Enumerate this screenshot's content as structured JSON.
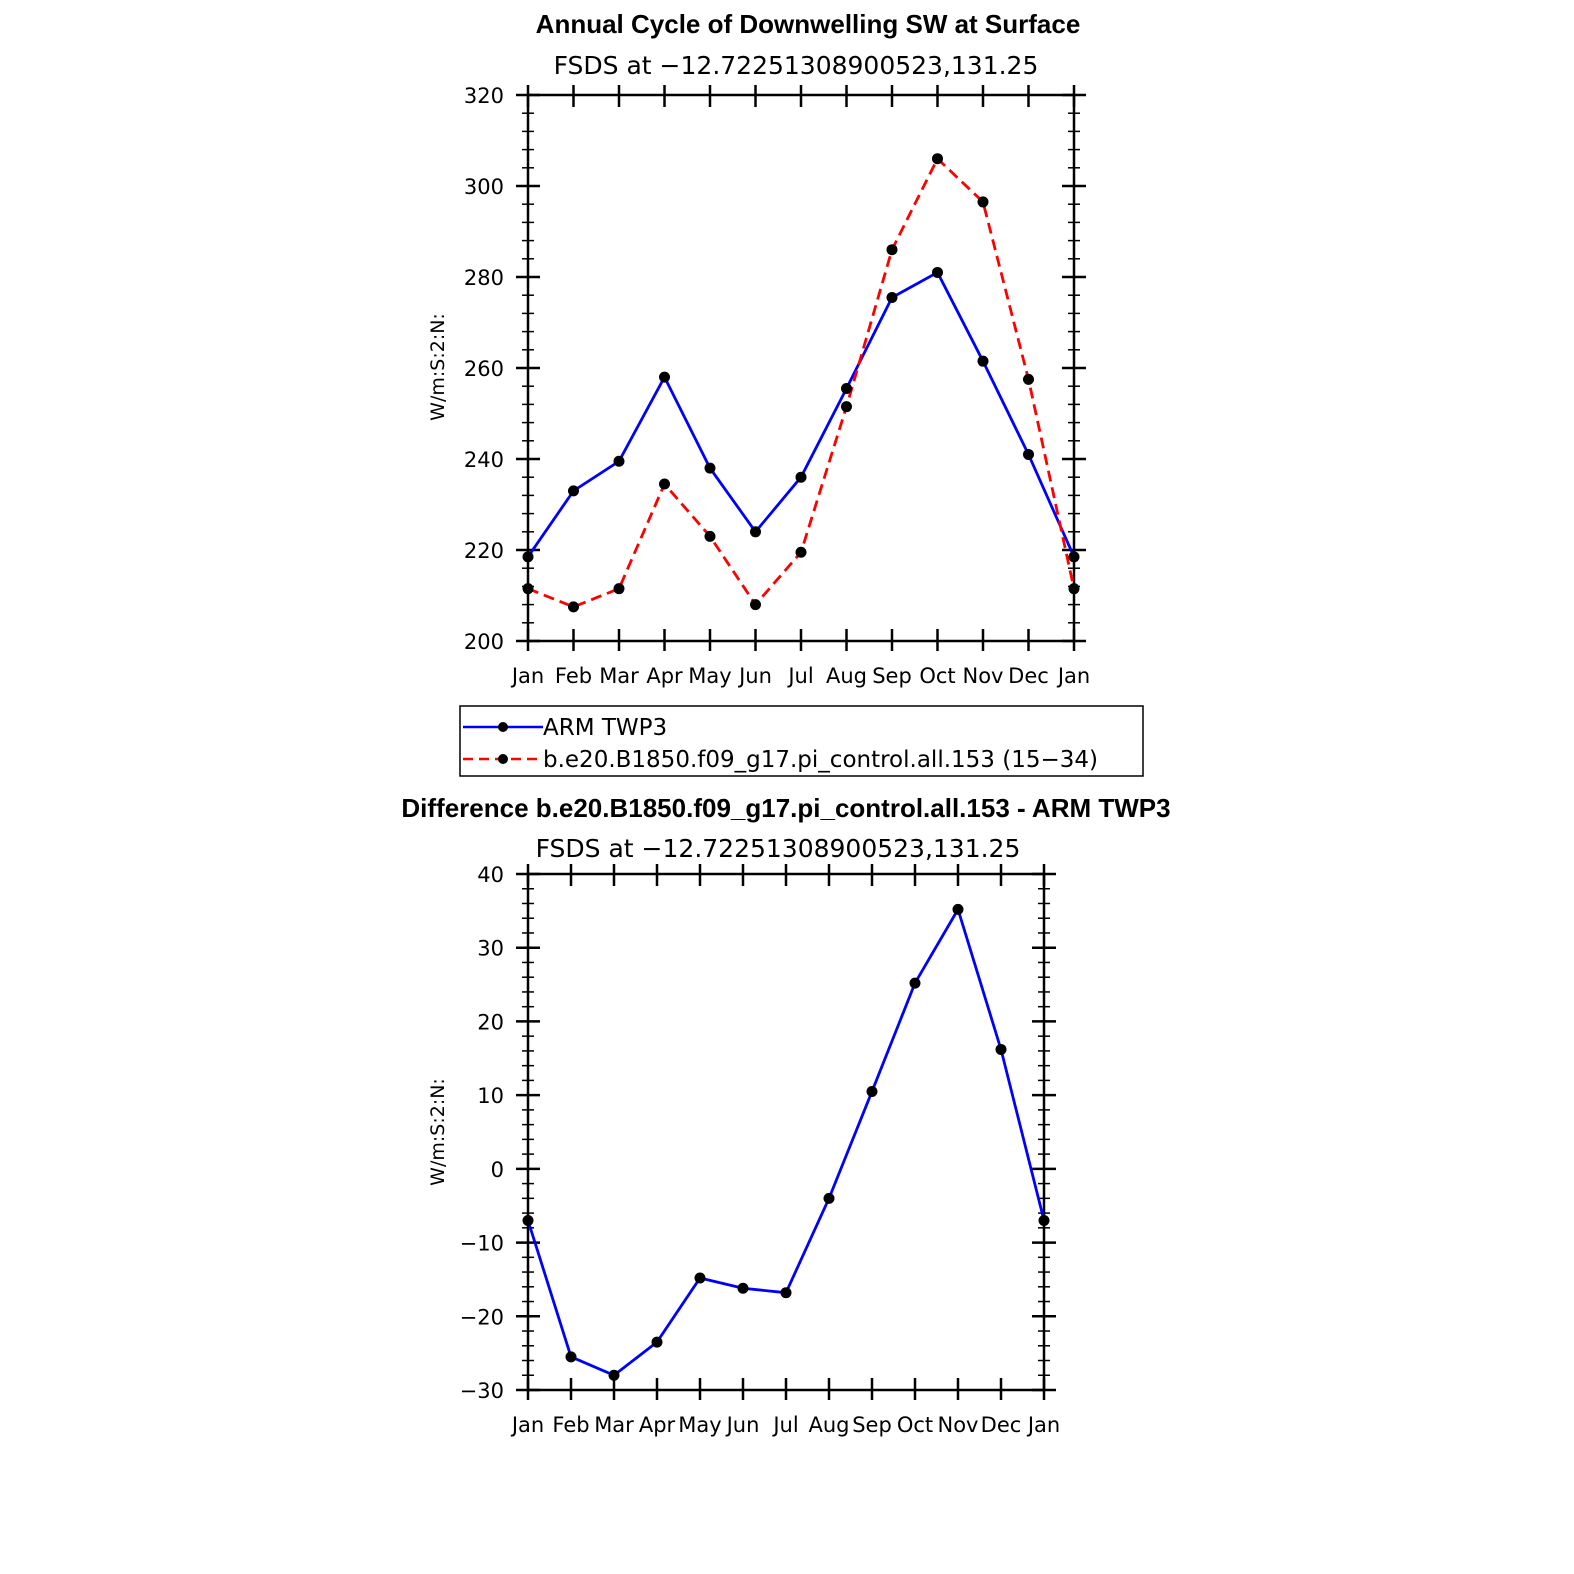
{
  "chart_data": [
    {
      "type": "line",
      "title": "Annual Cycle of Downwelling SW at Surface",
      "subtitle": "FSDS at −12.72251308900523,131.25",
      "xlabel": "",
      "ylabel": "W/m:S:2:N:",
      "categories": [
        "Jan",
        "Feb",
        "Mar",
        "Apr",
        "May",
        "Jun",
        "Jul",
        "Aug",
        "Sep",
        "Oct",
        "Nov",
        "Dec",
        "Jan"
      ],
      "ylim": [
        200,
        320
      ],
      "yticks": [
        "200",
        "220",
        "240",
        "260",
        "280",
        "300",
        "320"
      ],
      "series": [
        {
          "name": "ARM TWP3",
          "color": "#0000ff",
          "dash": "solid",
          "values": [
            218.5,
            233,
            239.5,
            258,
            238,
            224,
            236,
            255.5,
            275.5,
            281,
            261.5,
            241,
            218.5
          ]
        },
        {
          "name": "b.e20.B1850.f09_g17.pi_control.all.153 (15−34)",
          "color": "#ff0000",
          "dash": "dashed",
          "values": [
            211.5,
            207.5,
            211.5,
            234.5,
            223,
            208,
            219.5,
            251.5,
            286,
            306,
            296.5,
            257.5,
            211.5
          ]
        }
      ],
      "legend": "below"
    },
    {
      "type": "line",
      "title": "Difference b.e20.B1850.f09_g17.pi_control.all.153 - ARM TWP3",
      "subtitle": "FSDS at −12.72251308900523,131.25",
      "xlabel": "",
      "ylabel": "W/m:S:2:N:",
      "categories": [
        "Jan",
        "Feb",
        "Mar",
        "Apr",
        "May",
        "Jun",
        "Jul",
        "Aug",
        "Sep",
        "Oct",
        "Nov",
        "Dec",
        "Jan"
      ],
      "ylim": [
        -30,
        40
      ],
      "yticks": [
        "−30",
        "−20",
        "−10",
        "0",
        "10",
        "20",
        "30",
        "40"
      ],
      "series": [
        {
          "name": "Difference",
          "color": "#0000ff",
          "dash": "solid",
          "values": [
            -7,
            -25.5,
            -28,
            -23.5,
            -14.8,
            -16.2,
            -16.8,
            -4,
            10.5,
            25.2,
            35.2,
            16.2,
            -7
          ]
        }
      ]
    }
  ]
}
